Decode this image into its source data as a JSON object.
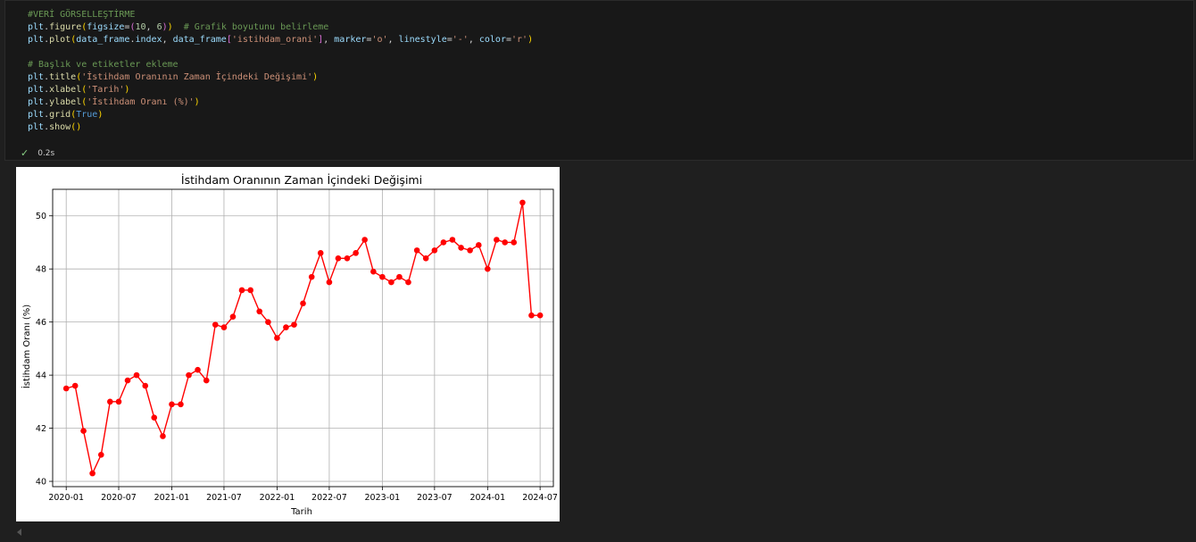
{
  "code_cell": {
    "lines": [
      [
        {
          "t": "#VERİ GÖRSELLEŞTİRME",
          "c": "com"
        }
      ],
      [
        {
          "t": "plt",
          "c": "var"
        },
        {
          "t": ".",
          "c": "plain"
        },
        {
          "t": "figure",
          "c": "fn"
        },
        {
          "t": "(",
          "c": "br1"
        },
        {
          "t": "figsize",
          "c": "var"
        },
        {
          "t": "=",
          "c": "plain"
        },
        {
          "t": "(",
          "c": "br2"
        },
        {
          "t": "10",
          "c": "num"
        },
        {
          "t": ", ",
          "c": "plain"
        },
        {
          "t": "6",
          "c": "num"
        },
        {
          "t": ")",
          "c": "br2"
        },
        {
          "t": ")",
          "c": "br1"
        },
        {
          "t": "  # Grafik boyutunu belirleme",
          "c": "com"
        }
      ],
      [
        {
          "t": "plt",
          "c": "var"
        },
        {
          "t": ".",
          "c": "plain"
        },
        {
          "t": "plot",
          "c": "fn"
        },
        {
          "t": "(",
          "c": "br1"
        },
        {
          "t": "data_frame",
          "c": "var"
        },
        {
          "t": ".",
          "c": "plain"
        },
        {
          "t": "index",
          "c": "var"
        },
        {
          "t": ", ",
          "c": "plain"
        },
        {
          "t": "data_frame",
          "c": "var"
        },
        {
          "t": "[",
          "c": "br2"
        },
        {
          "t": "'istihdam_orani'",
          "c": "str"
        },
        {
          "t": "]",
          "c": "br2"
        },
        {
          "t": ", ",
          "c": "plain"
        },
        {
          "t": "marker",
          "c": "var"
        },
        {
          "t": "=",
          "c": "plain"
        },
        {
          "t": "'o'",
          "c": "str"
        },
        {
          "t": ", ",
          "c": "plain"
        },
        {
          "t": "linestyle",
          "c": "var"
        },
        {
          "t": "=",
          "c": "plain"
        },
        {
          "t": "'-'",
          "c": "str"
        },
        {
          "t": ", ",
          "c": "plain"
        },
        {
          "t": "color",
          "c": "var"
        },
        {
          "t": "=",
          "c": "plain"
        },
        {
          "t": "'r'",
          "c": "str"
        },
        {
          "t": ")",
          "c": "br1"
        }
      ],
      [],
      [
        {
          "t": "# Başlık ve etiketler ekleme",
          "c": "com"
        }
      ],
      [
        {
          "t": "plt",
          "c": "var"
        },
        {
          "t": ".",
          "c": "plain"
        },
        {
          "t": "title",
          "c": "fn"
        },
        {
          "t": "(",
          "c": "br1"
        },
        {
          "t": "'İstihdam Oranının Zaman İçindeki Değişimi'",
          "c": "str"
        },
        {
          "t": ")",
          "c": "br1"
        }
      ],
      [
        {
          "t": "plt",
          "c": "var"
        },
        {
          "t": ".",
          "c": "plain"
        },
        {
          "t": "xlabel",
          "c": "fn"
        },
        {
          "t": "(",
          "c": "br1"
        },
        {
          "t": "'Tarih'",
          "c": "str"
        },
        {
          "t": ")",
          "c": "br1"
        }
      ],
      [
        {
          "t": "plt",
          "c": "var"
        },
        {
          "t": ".",
          "c": "plain"
        },
        {
          "t": "ylabel",
          "c": "fn"
        },
        {
          "t": "(",
          "c": "br1"
        },
        {
          "t": "'İstihdam Oranı (%)'",
          "c": "str"
        },
        {
          "t": ")",
          "c": "br1"
        }
      ],
      [
        {
          "t": "plt",
          "c": "var"
        },
        {
          "t": ".",
          "c": "plain"
        },
        {
          "t": "grid",
          "c": "fn"
        },
        {
          "t": "(",
          "c": "br1"
        },
        {
          "t": "True",
          "c": "kw"
        },
        {
          "t": ")",
          "c": "br1"
        }
      ],
      [
        {
          "t": "plt",
          "c": "var"
        },
        {
          "t": ".",
          "c": "plain"
        },
        {
          "t": "show",
          "c": "fn"
        },
        {
          "t": "()",
          "c": "br1"
        }
      ]
    ],
    "status_icon": "check-icon",
    "duration": "0.2s"
  },
  "chart_data": {
    "type": "line",
    "title": "İstihdam Oranının Zaman İçindeki Değişimi",
    "xlabel": "Tarih",
    "ylabel": "İstihdam Oranı (%)",
    "grid": true,
    "color": "#ff0000",
    "marker": "o",
    "xlim": [
      "2019-11-15",
      "2024-08-16"
    ],
    "ylim": [
      39.8,
      51.0
    ],
    "x_ticks": [
      "2020-01",
      "2020-07",
      "2021-01",
      "2021-07",
      "2022-01",
      "2022-07",
      "2023-01",
      "2023-07",
      "2024-01",
      "2024-07"
    ],
    "y_ticks": [
      40,
      42,
      44,
      46,
      48,
      50
    ],
    "x": [
      "2020-01",
      "2020-02",
      "2020-03",
      "2020-04",
      "2020-05",
      "2020-06",
      "2020-07",
      "2020-08",
      "2020-09",
      "2020-10",
      "2020-11",
      "2020-12",
      "2021-01",
      "2021-02",
      "2021-03",
      "2021-04",
      "2021-05",
      "2021-06",
      "2021-07",
      "2021-08",
      "2021-09",
      "2021-10",
      "2021-11",
      "2021-12",
      "2022-01",
      "2022-02",
      "2022-03",
      "2022-04",
      "2022-05",
      "2022-06",
      "2022-07",
      "2022-08",
      "2022-09",
      "2022-10",
      "2022-11",
      "2022-12",
      "2023-01",
      "2023-02",
      "2023-03",
      "2023-04",
      "2023-05",
      "2023-06",
      "2023-07",
      "2023-08",
      "2023-09",
      "2023-10",
      "2023-11",
      "2023-12",
      "2024-01",
      "2024-02",
      "2024-03",
      "2024-04",
      "2024-05",
      "2024-06",
      "2024-07"
    ],
    "values": [
      43.5,
      43.6,
      41.9,
      40.3,
      41.0,
      43.0,
      43.0,
      43.8,
      44.0,
      43.6,
      42.4,
      41.7,
      42.9,
      42.9,
      44.0,
      44.2,
      43.8,
      45.9,
      45.8,
      46.2,
      47.2,
      47.2,
      46.4,
      46.0,
      45.4,
      45.8,
      45.9,
      46.7,
      47.7,
      48.6,
      47.5,
      48.4,
      48.4,
      48.6,
      49.1,
      47.9,
      47.7,
      47.5,
      47.7,
      47.5,
      48.7,
      48.4,
      48.7,
      49.0,
      49.1,
      48.8,
      48.7,
      48.9,
      48.0,
      49.1,
      49.0,
      49.0,
      50.5,
      46.25,
      46.25
    ]
  }
}
